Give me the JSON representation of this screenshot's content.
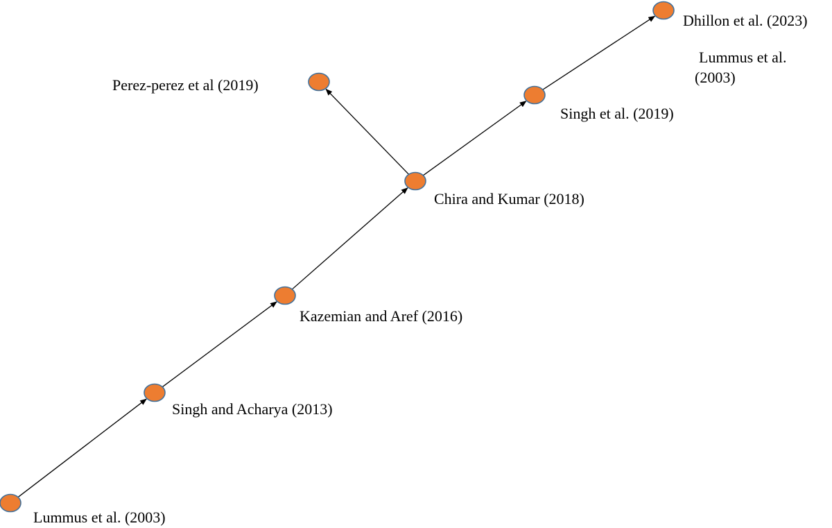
{
  "colors": {
    "node_fill": "#ED7D31",
    "node_stroke": "#41719C",
    "edge": "#000000",
    "text": "#000000"
  },
  "nodes": [
    {
      "id": "lummus-2003-start",
      "label": "Lummus et al. (2003)"
    },
    {
      "id": "singh-acharya-2013",
      "label": "Singh and Acharya (2013)"
    },
    {
      "id": "kazemian-aref-2016",
      "label": "Kazemian and Aref (2016)"
    },
    {
      "id": "chira-kumar-2018",
      "label": "Chira and Kumar (2018)"
    },
    {
      "id": "perez-perez-2019",
      "label": "Perez-perez et al (2019)"
    },
    {
      "id": "singh-2019",
      "label": "Singh et al.  (2019)"
    },
    {
      "id": "dhillon-2023",
      "label": "Dhillon et al. (2023)"
    }
  ],
  "edges": [
    {
      "from": "lummus-2003-start",
      "to": "singh-acharya-2013"
    },
    {
      "from": "singh-acharya-2013",
      "to": "kazemian-aref-2016"
    },
    {
      "from": "kazemian-aref-2016",
      "to": "chira-kumar-2018"
    },
    {
      "from": "chira-kumar-2018",
      "to": "perez-perez-2019"
    },
    {
      "from": "chira-kumar-2018",
      "to": "singh-2019"
    },
    {
      "from": "singh-2019",
      "to": "dhillon-2023"
    }
  ],
  "annotation": {
    "line1": "Lummus et al.",
    "line2": "(2003)"
  }
}
